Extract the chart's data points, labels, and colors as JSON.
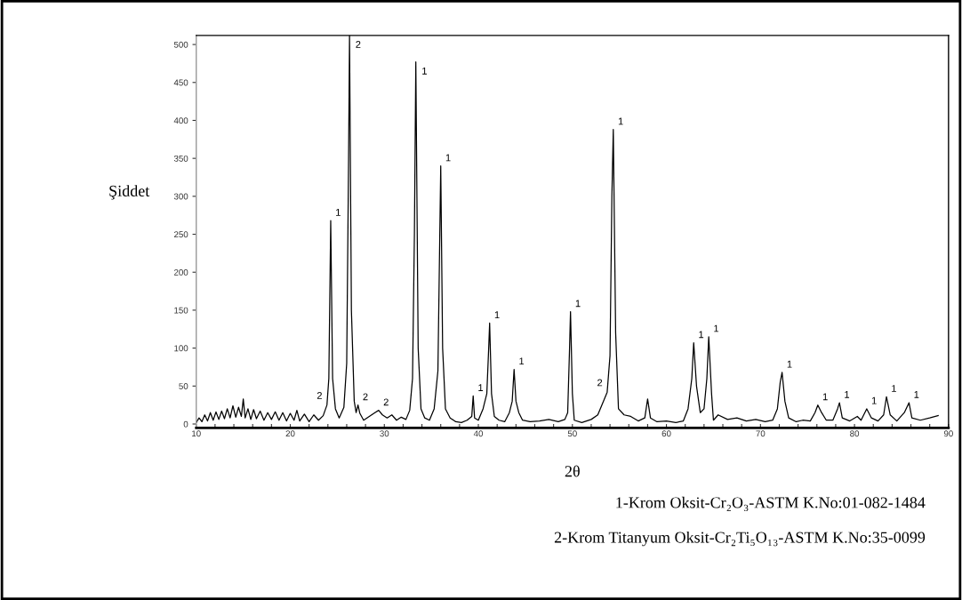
{
  "chart_data": {
    "type": "line",
    "xlabel": "2θ",
    "ylabel": "Şiddet",
    "x": [
      10.0,
      10.3,
      10.6,
      10.9,
      11.2,
      11.5,
      11.8,
      12.1,
      12.4,
      12.7,
      13.0,
      13.3,
      13.6,
      13.9,
      14.2,
      14.5,
      14.8,
      15.0,
      15.2,
      15.5,
      15.8,
      16.1,
      16.4,
      16.8,
      17.2,
      17.6,
      18.0,
      18.4,
      18.8,
      19.2,
      19.6,
      20.0,
      20.4,
      20.7,
      21.0,
      21.5,
      22.0,
      22.5,
      23.0,
      23.5,
      23.9,
      24.1,
      24.3,
      24.5,
      24.8,
      25.2,
      25.7,
      26.0,
      26.2,
      26.3,
      26.5,
      26.8,
      27.0,
      27.2,
      27.4,
      27.8,
      28.4,
      29.0,
      29.4,
      29.8,
      30.3,
      30.8,
      31.3,
      31.8,
      32.3,
      32.7,
      33.0,
      33.2,
      33.35,
      33.6,
      33.9,
      34.3,
      34.8,
      35.3,
      35.7,
      35.9,
      36.0,
      36.2,
      36.5,
      37.0,
      37.6,
      38.2,
      38.8,
      39.3,
      39.45,
      39.6,
      40.0,
      40.5,
      40.9,
      41.1,
      41.2,
      41.4,
      41.7,
      42.2,
      42.8,
      43.3,
      43.6,
      43.8,
      44.0,
      44.3,
      44.7,
      45.5,
      46.5,
      47.5,
      48.5,
      49.2,
      49.5,
      49.7,
      49.8,
      50.0,
      50.2,
      51.0,
      52.0,
      52.7,
      53.3,
      53.7,
      54.0,
      54.2,
      54.35,
      54.6,
      54.9,
      55.5,
      56.2,
      57.0,
      57.7,
      58.0,
      58.3,
      59.0,
      60.0,
      61.0,
      61.8,
      62.3,
      62.7,
      62.9,
      63.2,
      63.6,
      64.0,
      64.3,
      64.5,
      64.8,
      65.0,
      65.5,
      66.5,
      67.5,
      68.5,
      69.5,
      70.5,
      71.3,
      71.8,
      72.1,
      72.3,
      72.6,
      73.0,
      73.8,
      74.5,
      75.3,
      75.8,
      76.1,
      76.5,
      77.0,
      77.7,
      78.2,
      78.4,
      78.7,
      79.5,
      80.3,
      80.7,
      81.3,
      81.8,
      82.5,
      83.1,
      83.4,
      83.8,
      84.5,
      85.3,
      85.8,
      86.1,
      87.0,
      88.0,
      88.9
    ],
    "series": [
      {
        "color": "#000000",
        "values": [
          2,
          8,
          3,
          12,
          4,
          15,
          5,
          16,
          6,
          17,
          7,
          20,
          8,
          24,
          9,
          22,
          10,
          33,
          8,
          20,
          6,
          19,
          7,
          17,
          5,
          15,
          6,
          16,
          5,
          15,
          4,
          14,
          5,
          18,
          4,
          13,
          3,
          12,
          5,
          11,
          25,
          60,
          268,
          60,
          20,
          8,
          22,
          80,
          350,
          512,
          150,
          30,
          15,
          25,
          14,
          5,
          10,
          15,
          18,
          12,
          8,
          12,
          5,
          9,
          6,
          18,
          60,
          250,
          477,
          100,
          20,
          8,
          5,
          20,
          70,
          250,
          340,
          100,
          20,
          8,
          3,
          2,
          5,
          10,
          37,
          8,
          5,
          20,
          40,
          100,
          133,
          40,
          10,
          5,
          3,
          15,
          30,
          72,
          30,
          15,
          5,
          3,
          4,
          6,
          3,
          6,
          15,
          100,
          148,
          40,
          5,
          2,
          6,
          12,
          30,
          42,
          90,
          300,
          388,
          120,
          20,
          12,
          10,
          4,
          8,
          33,
          8,
          3,
          4,
          2,
          4,
          20,
          60,
          107,
          50,
          15,
          20,
          60,
          115,
          40,
          5,
          12,
          6,
          8,
          4,
          6,
          3,
          5,
          20,
          55,
          68,
          30,
          8,
          3,
          5,
          4,
          15,
          25,
          15,
          5,
          5,
          20,
          28,
          8,
          4,
          10,
          5,
          20,
          8,
          4,
          12,
          36,
          12,
          4,
          15,
          28,
          8,
          5,
          8,
          11
        ]
      }
    ],
    "xlim": [
      10,
      90
    ],
    "ylim": [
      -5,
      512
    ],
    "xticks": [
      10,
      {
        "value": 12,
        "label": null
      },
      {
        "value": 14,
        "label": null
      },
      {
        "value": 16,
        "label": null
      },
      {
        "value": 18,
        "label": null
      },
      20,
      {
        "value": 22,
        "label": null
      },
      {
        "value": 24,
        "label": null
      },
      {
        "value": 26,
        "label": null
      },
      {
        "value": 28,
        "label": null
      },
      30,
      {
        "value": 32,
        "label": null
      },
      {
        "value": 34,
        "label": null
      },
      {
        "value": 36,
        "label": null
      },
      {
        "value": 38,
        "label": null
      },
      40,
      {
        "value": 42,
        "label": null
      },
      {
        "value": 44,
        "label": null
      },
      {
        "value": 46,
        "label": null
      },
      {
        "value": 48,
        "label": null
      },
      50,
      {
        "value": 52,
        "label": null
      },
      {
        "value": 54,
        "label": null
      },
      {
        "value": 56,
        "label": null
      },
      {
        "value": 58,
        "label": null
      },
      60,
      {
        "value": 62,
        "label": null
      },
      {
        "value": 64,
        "label": null
      },
      {
        "value": 66,
        "label": null
      },
      {
        "value": 68,
        "label": null
      },
      70,
      {
        "value": 72,
        "label": null
      },
      {
        "value": 74,
        "label": null
      },
      {
        "value": 76,
        "label": null
      },
      {
        "value": 78,
        "label": null
      },
      80,
      {
        "value": 82,
        "label": null
      },
      {
        "value": 84,
        "label": null
      },
      {
        "value": 86,
        "label": null
      },
      {
        "value": 88,
        "label": null
      },
      90
    ],
    "yticks": [
      0,
      50,
      100,
      150,
      200,
      250,
      300,
      350,
      400,
      450,
      500
    ],
    "grid": false,
    "legend": false,
    "marker": "none",
    "line_style": "solid",
    "annotations": [
      {
        "text": "2",
        "x": 26.3,
        "y": 512
      },
      {
        "text": "1",
        "x": 24.3,
        "y": 268
      },
      {
        "text": "2",
        "x": 23.9,
        "y": 25
      },
      {
        "text": "2",
        "x": 27.2,
        "y": 25
      },
      {
        "text": "2",
        "x": 29.4,
        "y": 18
      },
      {
        "text": "1",
        "x": 33.35,
        "y": 477
      },
      {
        "text": "1",
        "x": 36.0,
        "y": 340
      },
      {
        "text": "1",
        "x": 39.45,
        "y": 37
      },
      {
        "text": "1",
        "x": 41.2,
        "y": 133
      },
      {
        "text": "1",
        "x": 43.8,
        "y": 72
      },
      {
        "text": "1",
        "x": 49.8,
        "y": 148
      },
      {
        "text": "2",
        "x": 53.7,
        "y": 42
      },
      {
        "text": "1",
        "x": 54.35,
        "y": 388
      },
      {
        "text": "1",
        "x": 62.9,
        "y": 107
      },
      {
        "text": "1",
        "x": 64.5,
        "y": 115
      },
      {
        "text": "1",
        "x": 72.3,
        "y": 68
      },
      {
        "text": "1",
        "x": 76.1,
        "y": 25
      },
      {
        "text": "1",
        "x": 78.4,
        "y": 28
      },
      {
        "text": "1",
        "x": 81.3,
        "y": 20
      },
      {
        "text": "1",
        "x": 83.4,
        "y": 36
      },
      {
        "text": "1",
        "x": 85.8,
        "y": 28
      },
      "1-Krom Oksit-Cr₂O₃-ASTM K.No:01-082-1484",
      "2-Krom Titanyum Oksit-Cr₂Ti₅O₁₃-ASTM K.No:35-0099"
    ]
  }
}
